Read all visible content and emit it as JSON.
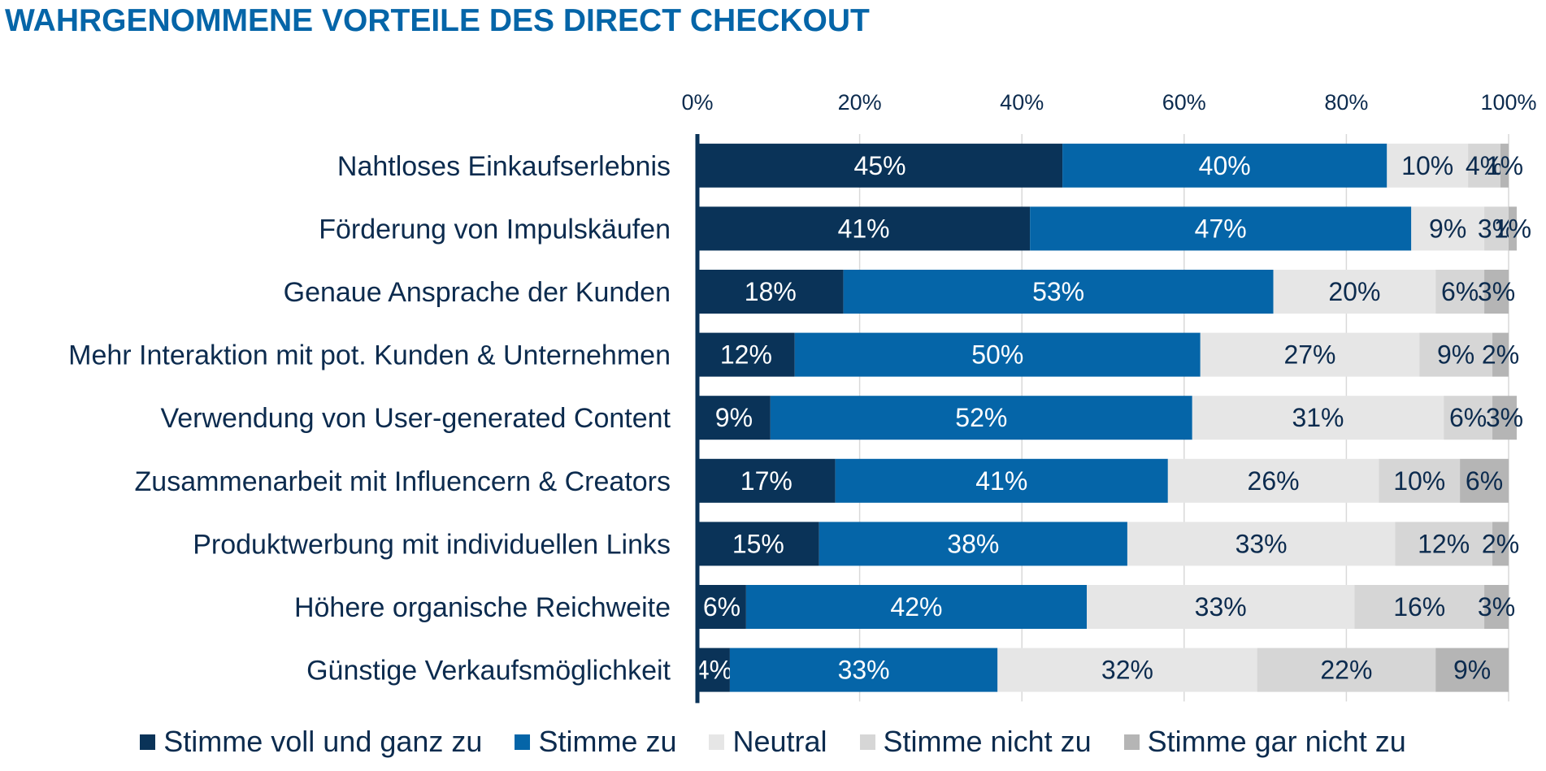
{
  "chart_data": {
    "type": "bar",
    "orientation": "horizontal",
    "stacked": true,
    "title": "WAHRGENOMMENE VORTEILE DES DIRECT CHECKOUT",
    "categories": [
      "Nahtloses Einkaufserlebnis",
      "Förderung von Impulskäufen",
      "Genaue Ansprache der Kunden",
      "Mehr Interaktion mit pot. Kunden & Unternehmen",
      "Verwendung von User-generated Content",
      "Zusammenarbeit mit Influencern & Creators",
      "Produktwerbung mit individuellen Links",
      "Höhere organische Reichweite",
      "Günstige Verkaufsmöglichkeit"
    ],
    "series": [
      {
        "name": "Stimme voll und ganz zu",
        "color": "#0a3358",
        "label_color": "#ffffff",
        "values": [
          45,
          41,
          18,
          12,
          9,
          17,
          15,
          6,
          4
        ]
      },
      {
        "name": "Stimme zu",
        "color": "#0565a8",
        "label_color": "#ffffff",
        "values": [
          40,
          47,
          53,
          50,
          52,
          41,
          38,
          42,
          33
        ]
      },
      {
        "name": "Neutral",
        "color": "#e6e6e6",
        "label_color": "#0c2b4e",
        "values": [
          10,
          9,
          20,
          27,
          31,
          26,
          33,
          33,
          32
        ]
      },
      {
        "name": "Stimme nicht zu",
        "color": "#d6d6d6",
        "label_color": "#0c2b4e",
        "values": [
          4,
          3,
          6,
          9,
          6,
          10,
          12,
          16,
          22
        ]
      },
      {
        "name": "Stimme gar nicht zu",
        "color": "#b5b5b5",
        "label_color": "#0c2b4e",
        "values": [
          1,
          1,
          3,
          2,
          3,
          6,
          2,
          3,
          9
        ]
      }
    ],
    "xlim": [
      0,
      100
    ],
    "ticks": [
      0,
      20,
      40,
      60,
      80,
      100
    ],
    "tick_labels": [
      "0%",
      "20%",
      "40%",
      "60%",
      "80%",
      "100%"
    ],
    "axis_position": "top",
    "grid": true,
    "legend": "bottom"
  }
}
